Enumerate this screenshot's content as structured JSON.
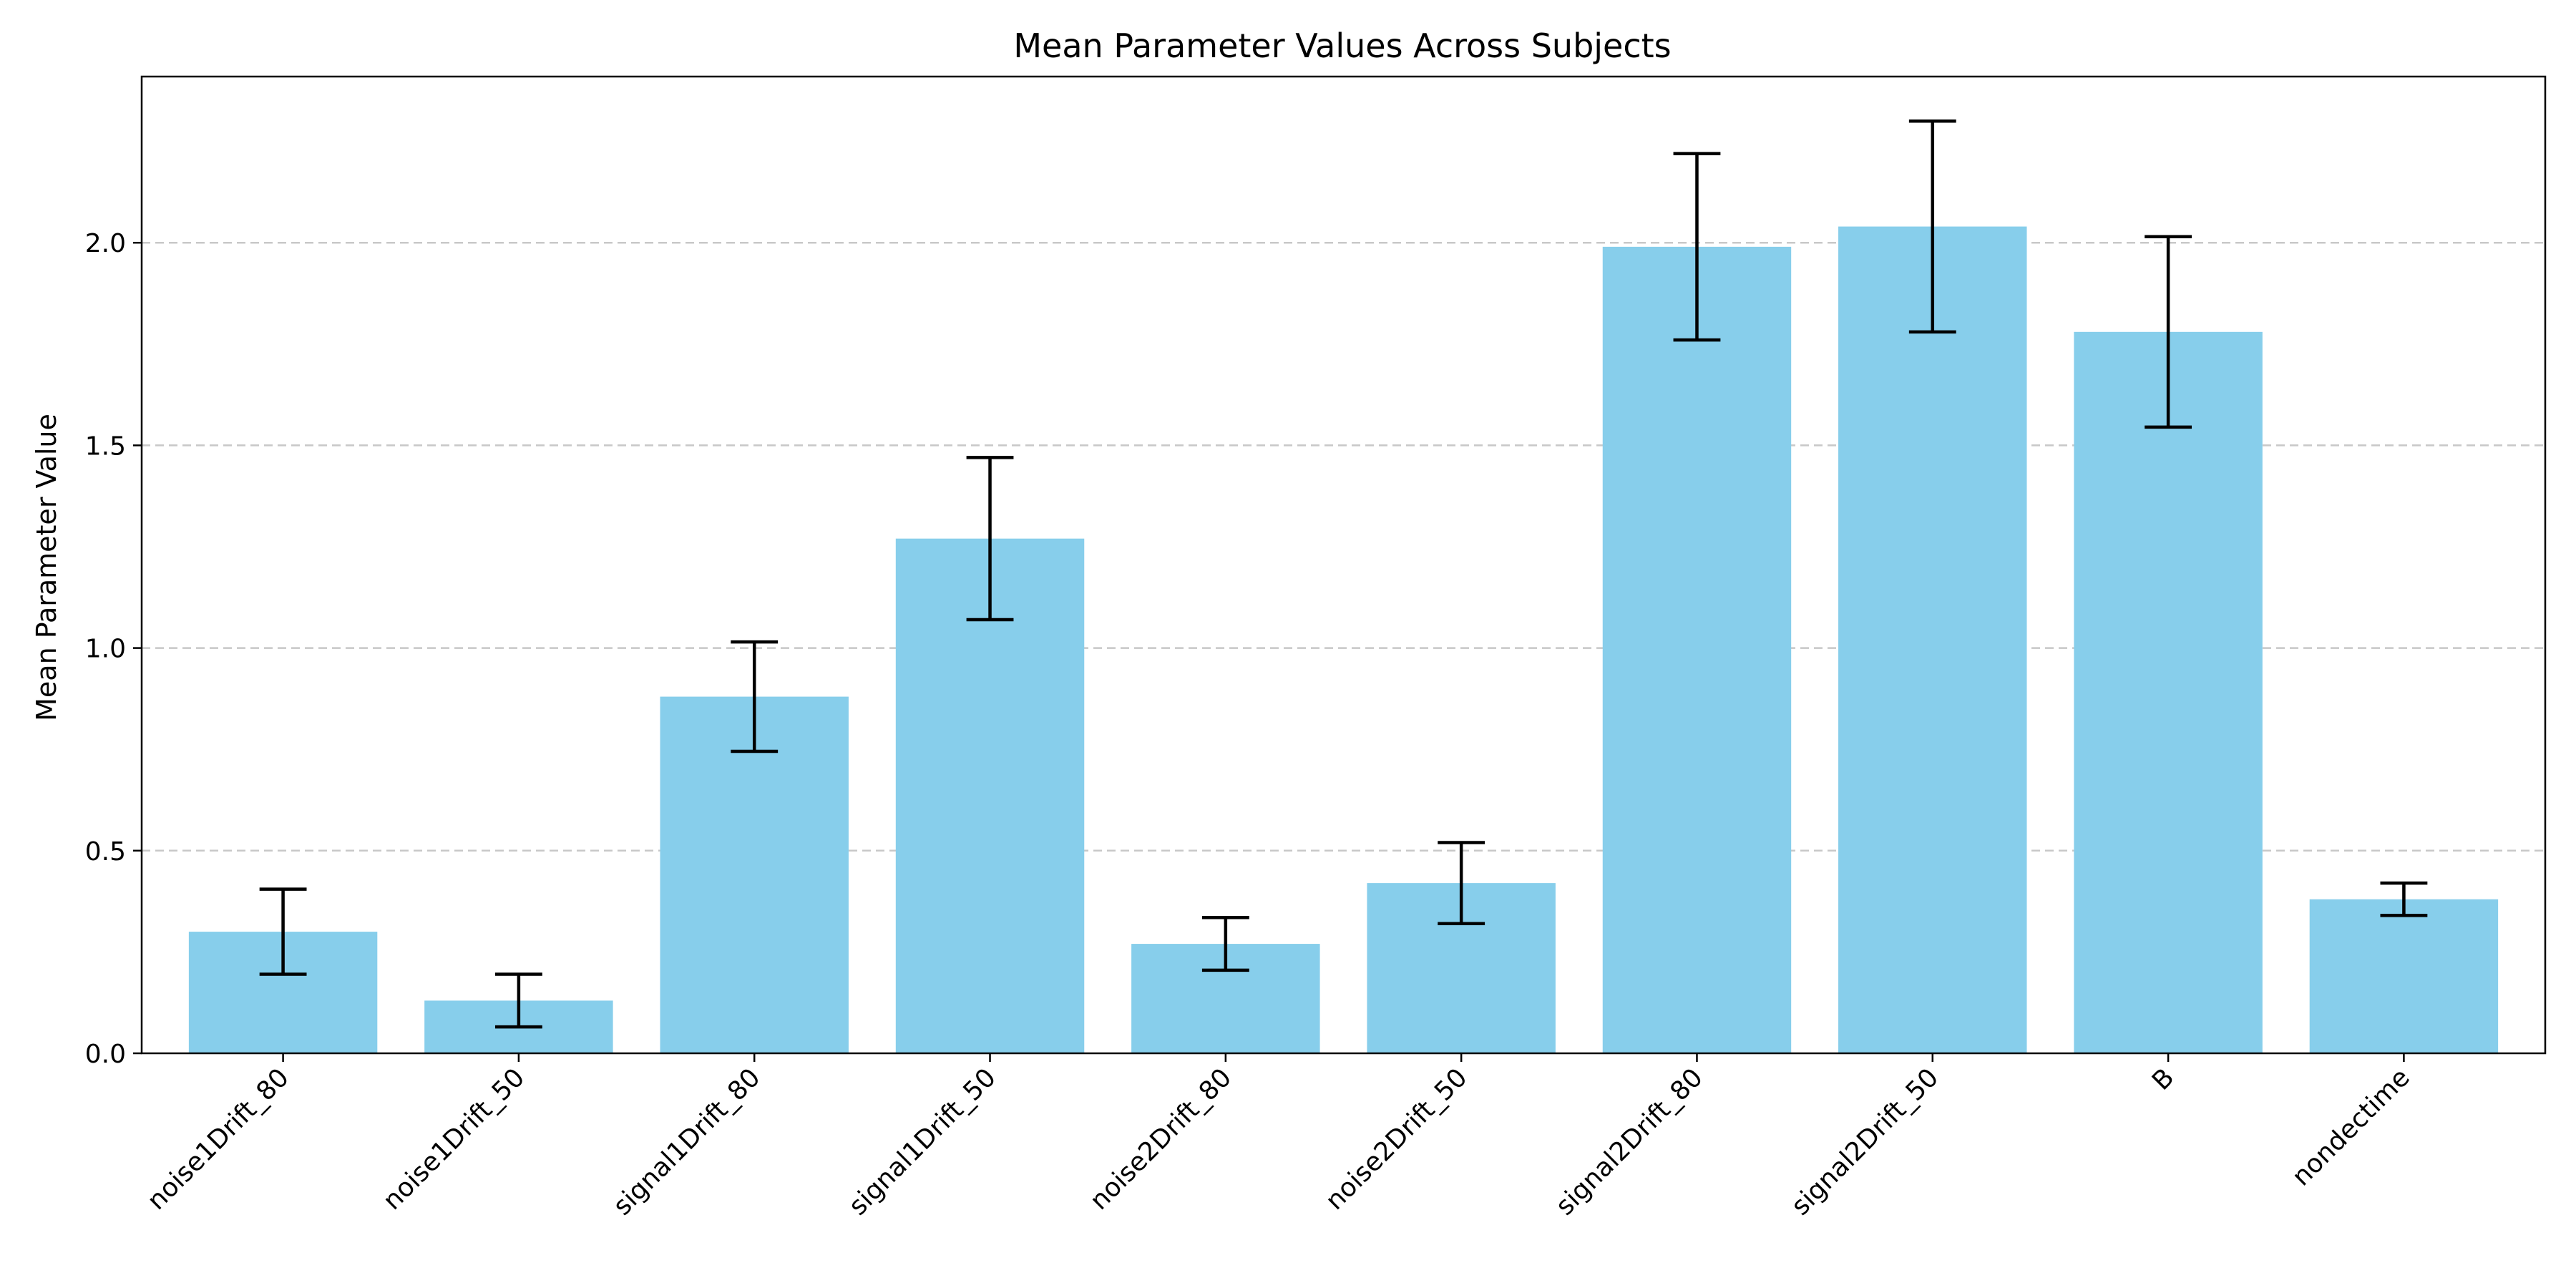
{
  "chart_data": {
    "type": "bar",
    "title": "Mean Parameter Values Across Subjects",
    "xlabel": "",
    "ylabel": "Mean Parameter Value",
    "categories": [
      "noise1Drift_80",
      "noise1Drift_50",
      "signal1Drift_80",
      "signal1Drift_50",
      "noise2Drift_80",
      "noise2Drift_50",
      "signal2Drift_80",
      "signal2Drift_50",
      "B",
      "nondectime"
    ],
    "values": [
      0.3,
      0.13,
      0.88,
      1.27,
      0.27,
      0.42,
      1.99,
      2.04,
      1.78,
      0.38
    ],
    "errors": [
      0.105,
      0.065,
      0.135,
      0.2,
      0.065,
      0.1,
      0.23,
      0.26,
      0.235,
      0.04
    ],
    "ylim": [
      0,
      2.41
    ],
    "yticks": [
      "0.0",
      "0.5",
      "1.0",
      "1.5",
      "2.0"
    ],
    "grid": "y",
    "colors": {
      "bar": "#87ceeb",
      "error": "#000000",
      "grid": "#c8c8c8"
    }
  }
}
